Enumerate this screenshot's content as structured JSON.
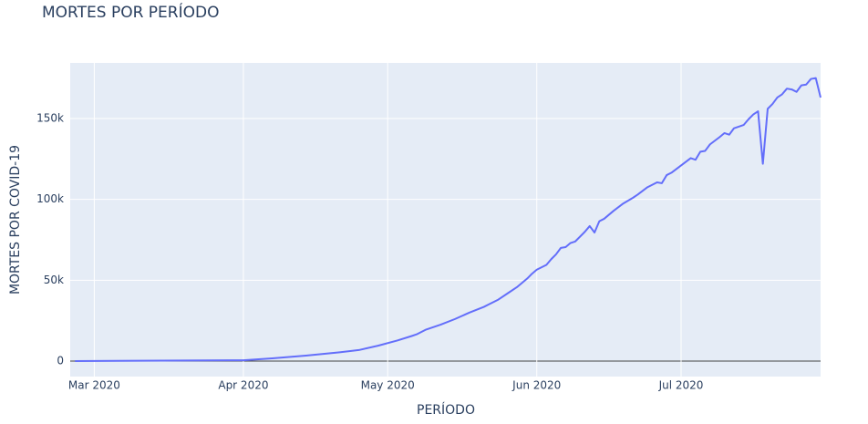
{
  "chart_data": {
    "type": "line",
    "title": "MORTES POR PERÍODO",
    "x_label": "PERÍODO",
    "y_label": "MORTES POR COVID-19",
    "x": [
      57,
      92,
      98,
      105,
      112,
      116,
      120,
      124,
      127,
      128,
      130,
      133,
      136,
      139,
      142,
      143,
      145,
      147,
      149,
      151,
      152,
      153,
      154,
      155,
      156,
      157,
      158,
      159,
      160,
      161,
      163,
      164,
      165,
      166,
      167,
      169,
      171,
      173,
      174,
      176,
      178,
      179,
      180,
      181,
      183,
      185,
      186,
      187,
      188,
      189,
      191,
      192,
      193,
      194,
      196,
      197,
      198,
      199,
      200,
      201,
      202,
      203,
      204,
      205,
      206,
      207,
      208,
      209,
      210,
      211,
      212
    ],
    "series": [
      {
        "name": "MORTES POR COVID-19",
        "color": "#636efa",
        "values": [
          0,
          500,
          1700,
          3400,
          5400,
          6800,
          9500,
          12700,
          15500,
          16500,
          19500,
          22500,
          26000,
          30000,
          33500,
          35000,
          38000,
          42000,
          46000,
          51000,
          54000,
          56500,
          58000,
          59500,
          63000,
          66000,
          70000,
          70500,
          73000,
          74000,
          80000,
          83500,
          79500,
          86500,
          88000,
          93000,
          97500,
          101000,
          103000,
          107500,
          110500,
          110000,
          115000,
          116500,
          121000,
          125500,
          124500,
          129500,
          130000,
          134000,
          138500,
          141000,
          140000,
          144000,
          146000,
          149500,
          152500,
          154500,
          122000,
          156000,
          159000,
          163000,
          165000,
          168500,
          168000,
          166500,
          170500,
          171000,
          174500,
          175000,
          163000
        ]
      }
    ],
    "xlim": [
      56,
      212
    ],
    "xticks": [
      {
        "value": 61,
        "label": "Mar 2020"
      },
      {
        "value": 92,
        "label": "Apr 2020"
      },
      {
        "value": 122,
        "label": "May 2020"
      },
      {
        "value": 153,
        "label": "Jun 2020"
      },
      {
        "value": 183,
        "label": "Jul 2020"
      }
    ],
    "ylim": [
      -9600,
      184400
    ],
    "yticks": [
      0,
      {
        "value": 50000,
        "label": "50k"
      },
      {
        "value": 100000,
        "label": "100k"
      },
      {
        "value": 150000,
        "label": "150k"
      }
    ],
    "grid": true
  }
}
